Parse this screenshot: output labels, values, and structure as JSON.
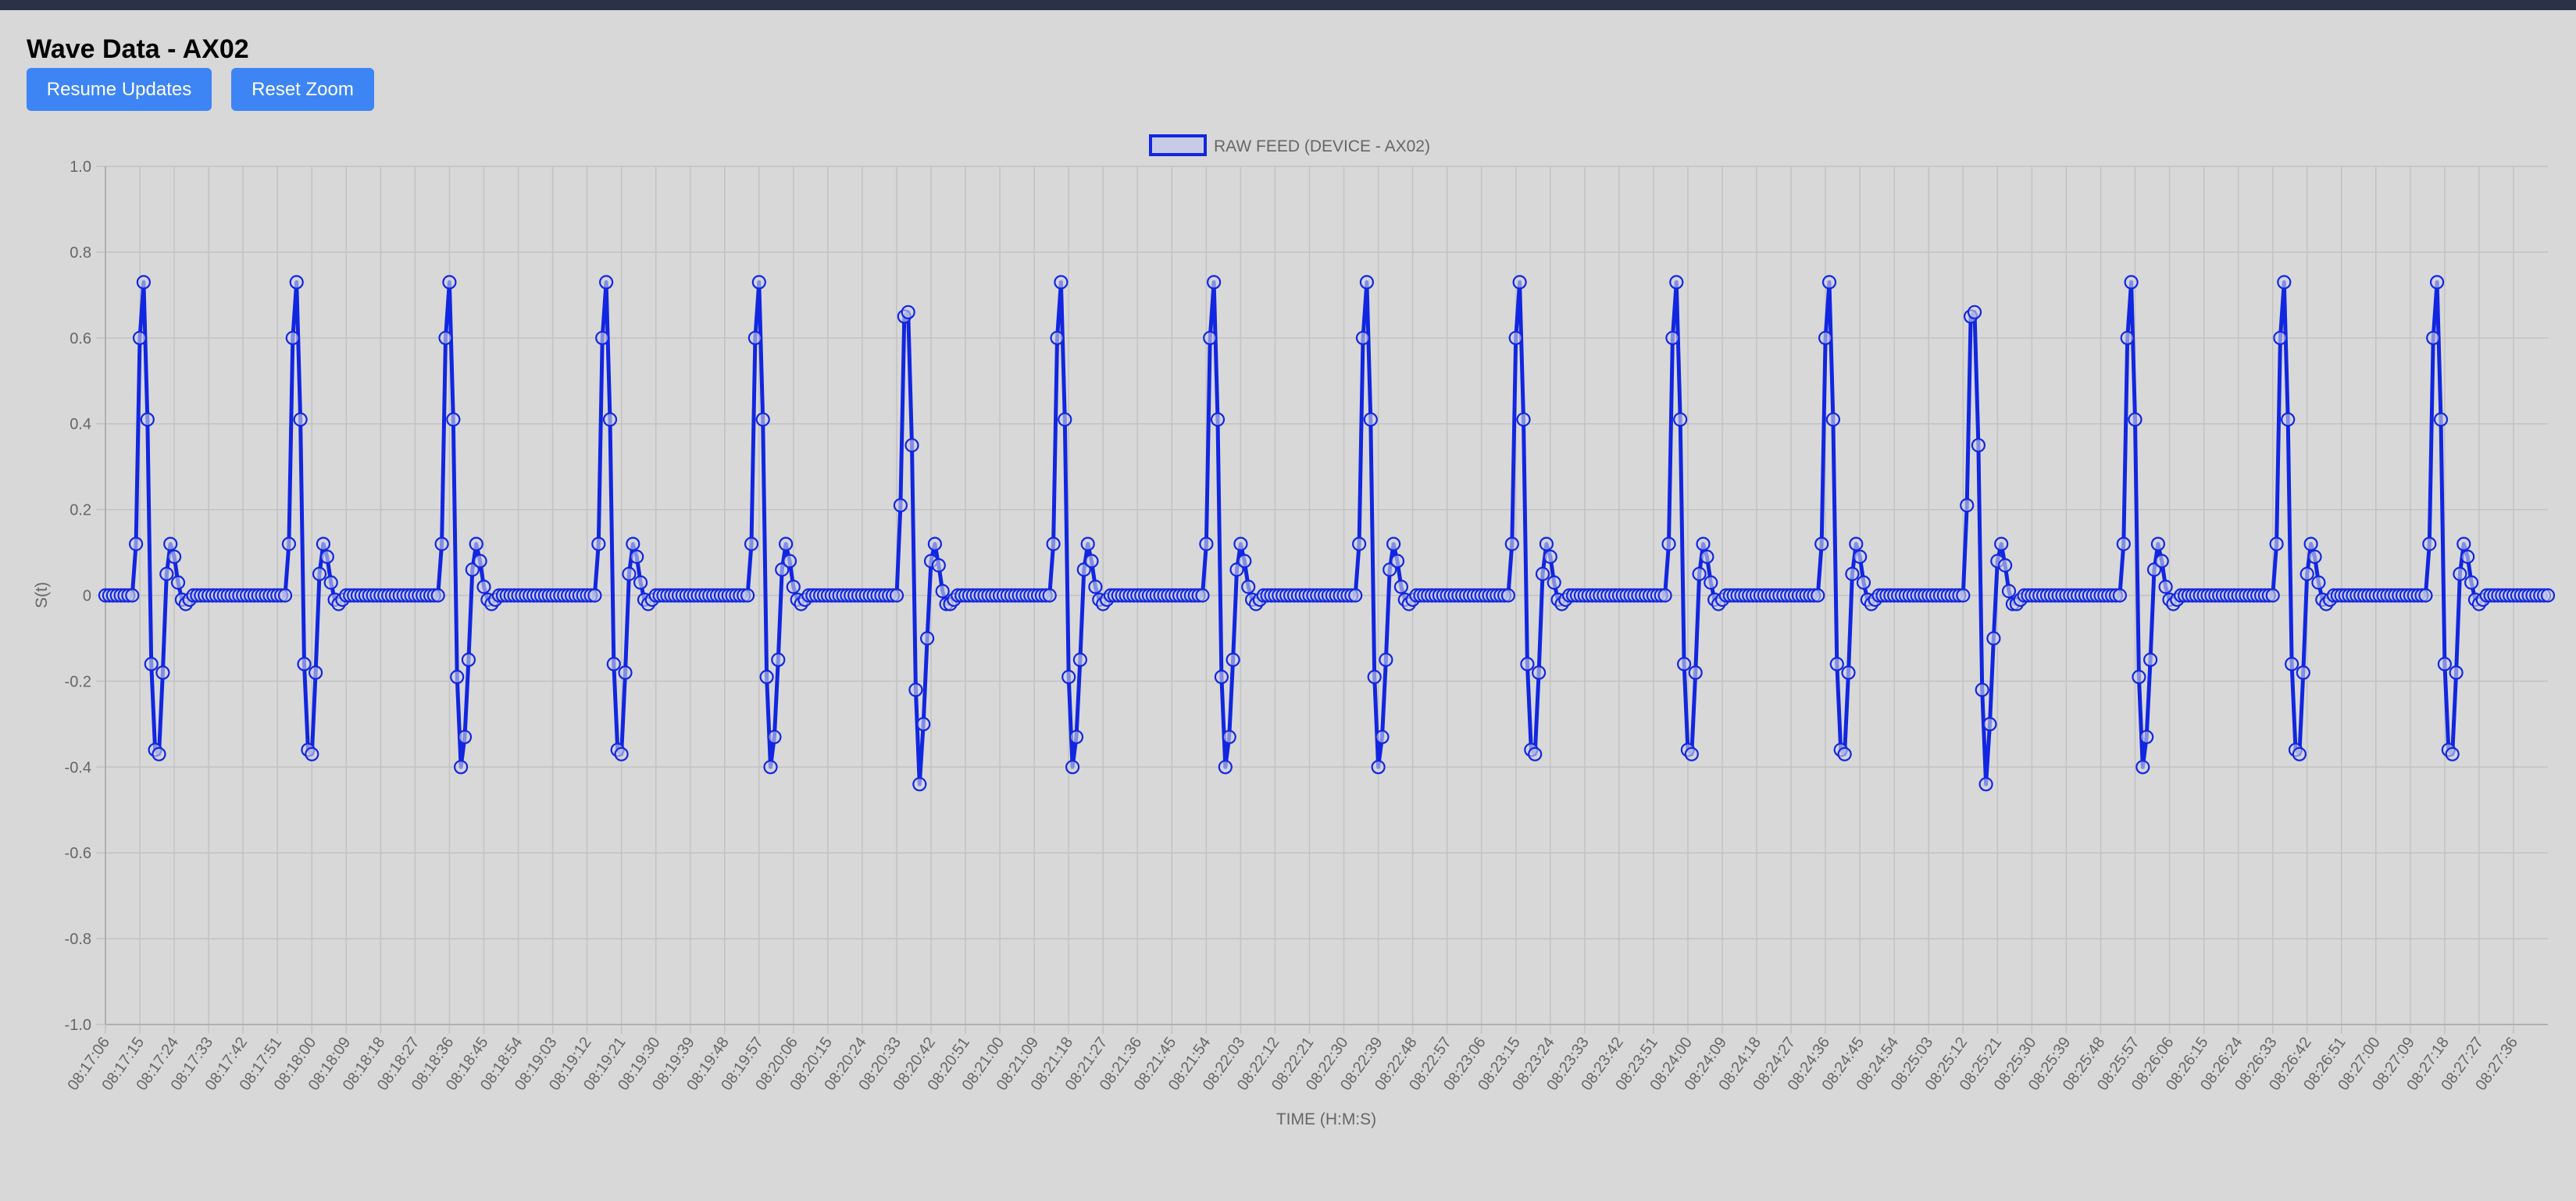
{
  "page": {
    "title": "Wave Data - AX02",
    "buttons": {
      "resume": "Resume Updates",
      "reset": "Reset Zoom"
    }
  },
  "colors": {
    "background": "#d8d8d8",
    "topbar": "#2b3147",
    "button": "#3d85f5",
    "series": "#1126e0",
    "legend_fill": "#c8cbe6",
    "grid": "#c2c2c2",
    "tick_text": "#666666"
  },
  "chart_data": {
    "type": "line",
    "legend": {
      "position": "top-center",
      "entries": [
        "RAW FEED (DEVICE - AX02)"
      ]
    },
    "xlabel": "TIME (H:M:S)",
    "ylabel": "S(t)",
    "ylim": [
      -1.0,
      1.0
    ],
    "grid": true,
    "y_ticks": [
      "1.0",
      "0.8",
      "0.6",
      "0.4",
      "0.2",
      "0",
      "-0.2",
      "-0.4",
      "-0.6",
      "-0.8",
      "-1.0"
    ],
    "x_ticks": [
      "08:17:06",
      "08:17:15",
      "08:17:24",
      "08:17:33",
      "08:17:42",
      "08:17:51",
      "08:18:00",
      "08:18:09",
      "08:18:18",
      "08:18:27",
      "08:18:36",
      "08:18:45",
      "08:18:54",
      "08:19:03",
      "08:19:12",
      "08:19:21",
      "08:19:30",
      "08:19:39",
      "08:19:48",
      "08:19:57",
      "08:20:06",
      "08:20:15",
      "08:20:24",
      "08:20:33",
      "08:20:42",
      "08:20:51",
      "08:21:00",
      "08:21:09",
      "08:21:18",
      "08:21:27",
      "08:21:36",
      "08:21:45",
      "08:21:54",
      "08:22:03",
      "08:22:12",
      "08:22:21",
      "08:22:30",
      "08:22:39",
      "08:22:48",
      "08:22:57",
      "08:23:06",
      "08:23:15",
      "08:23:24",
      "08:23:33",
      "08:23:42",
      "08:23:51",
      "08:24:00",
      "08:24:09",
      "08:24:18",
      "08:24:27",
      "08:24:36",
      "08:24:45",
      "08:24:54",
      "08:25:03",
      "08:25:12",
      "08:25:21",
      "08:25:30",
      "08:25:39",
      "08:25:48",
      "08:25:57",
      "08:26:06",
      "08:26:15",
      "08:26:24",
      "08:26:33",
      "08:26:42",
      "08:26:51",
      "08:27:00",
      "08:27:09",
      "08:27:18",
      "08:27:27",
      "08:27:36"
    ],
    "x_range": [
      "08:17:06",
      "08:27:45"
    ],
    "series": [
      {
        "name": "RAW FEED (DEVICE - AX02)",
        "beats": [
          {
            "peak_time": "08:17:16",
            "shape": "A"
          },
          {
            "peak_time": "08:17:56",
            "shape": "A"
          },
          {
            "peak_time": "08:18:36",
            "shape": "B"
          },
          {
            "peak_time": "08:19:17",
            "shape": "A"
          },
          {
            "peak_time": "08:19:57",
            "shape": "B"
          },
          {
            "peak_time": "08:20:36",
            "shape": "C"
          },
          {
            "peak_time": "08:21:16",
            "shape": "B"
          },
          {
            "peak_time": "08:21:56",
            "shape": "B"
          },
          {
            "peak_time": "08:22:36",
            "shape": "B"
          },
          {
            "peak_time": "08:23:16",
            "shape": "A"
          },
          {
            "peak_time": "08:23:57",
            "shape": "A"
          },
          {
            "peak_time": "08:24:37",
            "shape": "A"
          },
          {
            "peak_time": "08:25:15",
            "shape": "C"
          },
          {
            "peak_time": "08:25:56",
            "shape": "B"
          },
          {
            "peak_time": "08:26:36",
            "shape": "A"
          },
          {
            "peak_time": "08:27:16",
            "shape": "A"
          }
        ],
        "beat_shapes": {
          "A": {
            "offsets_s": [
              -3,
              -2,
              -1,
              0,
              1,
              2,
              3,
              4,
              5,
              6,
              7,
              8,
              9,
              10,
              11,
              12,
              13
            ],
            "values": [
              0,
              0.12,
              0.6,
              0.73,
              0.41,
              -0.16,
              -0.36,
              -0.37,
              -0.18,
              0.05,
              0.12,
              0.09,
              0.03,
              -0.01,
              -0.02,
              -0.01,
              0
            ]
          },
          "B": {
            "offsets_s": [
              -3,
              -2,
              -1,
              0,
              1,
              2,
              3,
              4,
              5,
              6,
              7,
              8,
              9,
              10,
              11,
              12,
              13
            ],
            "values": [
              0,
              0.12,
              0.6,
              0.73,
              0.41,
              -0.19,
              -0.4,
              -0.33,
              -0.15,
              0.06,
              0.12,
              0.08,
              0.02,
              -0.01,
              -0.02,
              -0.01,
              0
            ]
          },
          "C": {
            "offsets_s": [
              -3,
              -2,
              -1,
              0,
              1,
              2,
              3,
              4,
              5,
              6,
              7,
              8,
              9,
              10,
              11,
              12,
              13
            ],
            "values": [
              0,
              0.21,
              0.65,
              0.66,
              0.35,
              -0.22,
              -0.44,
              -0.3,
              -0.1,
              0.08,
              0.12,
              0.07,
              0.01,
              -0.02,
              -0.02,
              -0.01,
              0
            ]
          }
        },
        "baseline": 0
      }
    ]
  }
}
